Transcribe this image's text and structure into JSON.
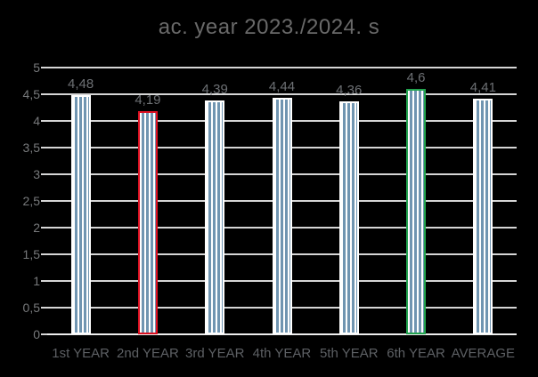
{
  "title": "ac. year 2023./2024. s",
  "colors": {
    "background": "#000000",
    "gridline": "#d6d6d6",
    "axis_line": "#eeeeee",
    "bar_stripe_blue": "#7095b1",
    "bar_white": "#ffffff",
    "highlight_red": "#dd1021",
    "highlight_green": "#22a44f",
    "title_text": "#696969",
    "data_label_text": "#6d7074",
    "axis_label_text": "#77797b",
    "category_label_text": "#5d6064"
  },
  "chart_data": {
    "type": "bar",
    "title": "ac. year 2023./2024. s",
    "categories": [
      "1st YEAR",
      "2nd YEAR",
      "3rd YEAR",
      "4th YEAR",
      "5th YEAR",
      "6th YEAR",
      "AVERAGE"
    ],
    "values": [
      4.48,
      4.19,
      4.39,
      4.44,
      4.36,
      4.6,
      4.41
    ],
    "data_labels": [
      "4,48",
      "4,19",
      "4,39",
      "4,44",
      "4,36",
      "4,6",
      "4,41"
    ],
    "bar_outline_colors": [
      "#ffffff",
      "#dd1021",
      "#ffffff",
      "#ffffff",
      "#ffffff",
      "#22a44f",
      "#ffffff"
    ],
    "ylim": [
      0,
      5
    ],
    "ytick_step": 0.5,
    "ytick_labels": [
      "0",
      "0,5",
      "1",
      "1,5",
      "2",
      "2,5",
      "3",
      "3,5",
      "4",
      "4,5",
      "5"
    ],
    "grid": true,
    "legend": "none",
    "bar_fill": "white with vertical steel-blue stripes"
  }
}
